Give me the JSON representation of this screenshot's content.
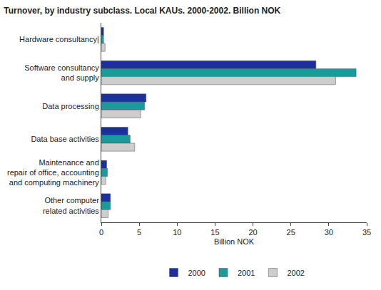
{
  "chart_data": {
    "type": "bar",
    "orientation": "horizontal",
    "title": "Turnover, by industry subclass. Local KAUs. 2000-2002. Billion NOK",
    "x_label": "Billion NOK",
    "categories": [
      "Hardware consultancy|",
      "Software consultancy\nand supply",
      "Data processing",
      "Data base activities",
      "Maintenance and\nrepair of office, accounting\nand computing machinery",
      "Other computer\nrelated activities"
    ],
    "series": [
      {
        "name": "2000",
        "color": "#1c2f9c",
        "values": [
          0.3,
          28.3,
          5.9,
          3.5,
          0.7,
          1.2
        ]
      },
      {
        "name": "2001",
        "color": "#1a9a9a",
        "values": [
          0.3,
          33.6,
          5.7,
          3.8,
          0.8,
          1.2
        ]
      },
      {
        "name": "2002",
        "color": "#cdcdcd",
        "values": [
          0.5,
          30.9,
          5.2,
          4.4,
          0.6,
          0.9
        ]
      }
    ],
    "xlim": [
      0,
      35
    ],
    "xticks": [
      0,
      5,
      10,
      15,
      20,
      25,
      30,
      35
    ],
    "grid": false,
    "legend": "bottom"
  }
}
